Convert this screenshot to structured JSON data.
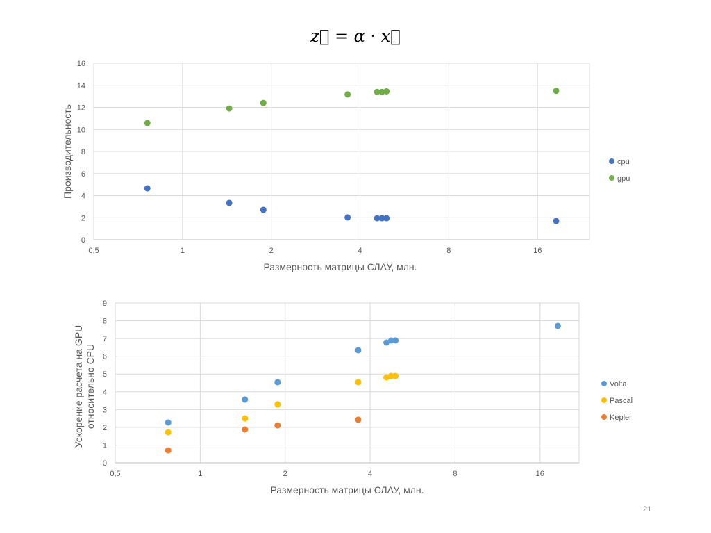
{
  "slide": {
    "title": "z⃗ = α · x⃗",
    "page_number": "21"
  },
  "chart_data": [
    {
      "type": "scatter",
      "title": "",
      "xlabel": "Размерность матрицы СЛАУ, млн.",
      "ylabel": "Производительность",
      "xscale": "log2",
      "xlim": [
        0.5,
        24
      ],
      "ylim": [
        0,
        16
      ],
      "xticks": [
        "0,5",
        "1",
        "2",
        "4",
        "8",
        "16"
      ],
      "xtick_values": [
        0.5,
        1,
        2,
        4,
        8,
        16
      ],
      "yticks": [
        0,
        2,
        4,
        6,
        8,
        10,
        12,
        14,
        16
      ],
      "grid": true,
      "legend": "right",
      "x": [
        0.76,
        1.44,
        1.88,
        3.63,
        4.57,
        4.75,
        4.92,
        18.5
      ],
      "series": [
        {
          "name": "cpu",
          "color": "#4472C4",
          "values": [
            4.66,
            3.34,
            2.71,
            2.02,
            1.95,
            1.95,
            1.95,
            1.7
          ]
        },
        {
          "name": "gpu",
          "color": "#70AD47",
          "values": [
            10.58,
            11.9,
            12.4,
            13.17,
            13.4,
            13.4,
            13.45,
            13.5
          ]
        }
      ]
    },
    {
      "type": "scatter",
      "title": "",
      "xlabel": "Размерность матрицы СЛАУ, млн.",
      "ylabel": "Ускорение расчета на GPU относительно CPU",
      "ylabel_lines": [
        "Ускорение расчета на GPU",
        "относительно CPU"
      ],
      "xscale": "log2",
      "xlim": [
        0.5,
        22
      ],
      "ylim": [
        0,
        9
      ],
      "xticks": [
        "0,5",
        "1",
        "2",
        "4",
        "8",
        "16"
      ],
      "xtick_values": [
        0.5,
        1,
        2,
        4,
        8,
        16
      ],
      "yticks": [
        0,
        1,
        2,
        3,
        4,
        5,
        6,
        7,
        8,
        9
      ],
      "grid": true,
      "legend": "right",
      "x": [
        0.77,
        1.44,
        1.88,
        3.63,
        4.57,
        4.75,
        4.92,
        18.5
      ],
      "series": [
        {
          "name": "Volta",
          "color": "#5B9BD5",
          "values": [
            2.27,
            3.56,
            4.54,
            6.34,
            6.77,
            6.89,
            6.89,
            7.71
          ]
        },
        {
          "name": "Pascal",
          "color": "#FFC000",
          "values": [
            1.72,
            2.5,
            3.29,
            4.54,
            4.81,
            4.89,
            4.89,
            null
          ]
        },
        {
          "name": "Kepler",
          "color": "#ED7D31",
          "values": [
            0.7,
            1.88,
            2.11,
            2.43,
            null,
            null,
            null,
            null
          ]
        }
      ]
    }
  ]
}
